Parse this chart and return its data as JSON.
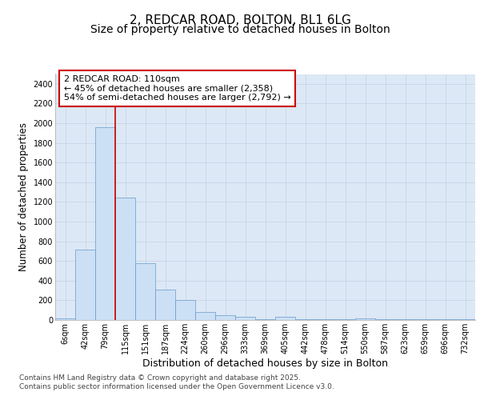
{
  "title_line1": "2, REDCAR ROAD, BOLTON, BL1 6LG",
  "title_line2": "Size of property relative to detached houses in Bolton",
  "xlabel": "Distribution of detached houses by size in Bolton",
  "ylabel": "Number of detached properties",
  "categories": [
    "6sqm",
    "42sqm",
    "79sqm",
    "115sqm",
    "151sqm",
    "187sqm",
    "224sqm",
    "260sqm",
    "296sqm",
    "333sqm",
    "369sqm",
    "405sqm",
    "442sqm",
    "478sqm",
    "514sqm",
    "550sqm",
    "587sqm",
    "623sqm",
    "659sqm",
    "696sqm",
    "732sqm"
  ],
  "values": [
    15,
    715,
    1960,
    1240,
    580,
    305,
    200,
    85,
    50,
    35,
    5,
    35,
    5,
    5,
    5,
    15,
    5,
    5,
    5,
    5,
    5
  ],
  "bar_color": "#cce0f5",
  "bar_edge_color": "#6699cc",
  "grid_color": "#c8d4e8",
  "background_color": "#dce8f5",
  "figure_color": "#ffffff",
  "vline_color": "#cc0000",
  "vline_x_index": 2.5,
  "annotation_text": "2 REDCAR ROAD: 110sqm\n← 45% of detached houses are smaller (2,358)\n54% of semi-detached houses are larger (2,792) →",
  "annotation_box_color": "#cc0000",
  "ylim": [
    0,
    2500
  ],
  "yticks": [
    0,
    200,
    400,
    600,
    800,
    1000,
    1200,
    1400,
    1600,
    1800,
    2000,
    2200,
    2400
  ],
  "footnote": "Contains HM Land Registry data © Crown copyright and database right 2025.\nContains public sector information licensed under the Open Government Licence v3.0.",
  "title_fontsize": 11,
  "subtitle_fontsize": 10,
  "axis_label_fontsize": 9,
  "ylabel_fontsize": 8.5,
  "tick_fontsize": 7,
  "footnote_fontsize": 6.5,
  "annotation_fontsize": 8
}
